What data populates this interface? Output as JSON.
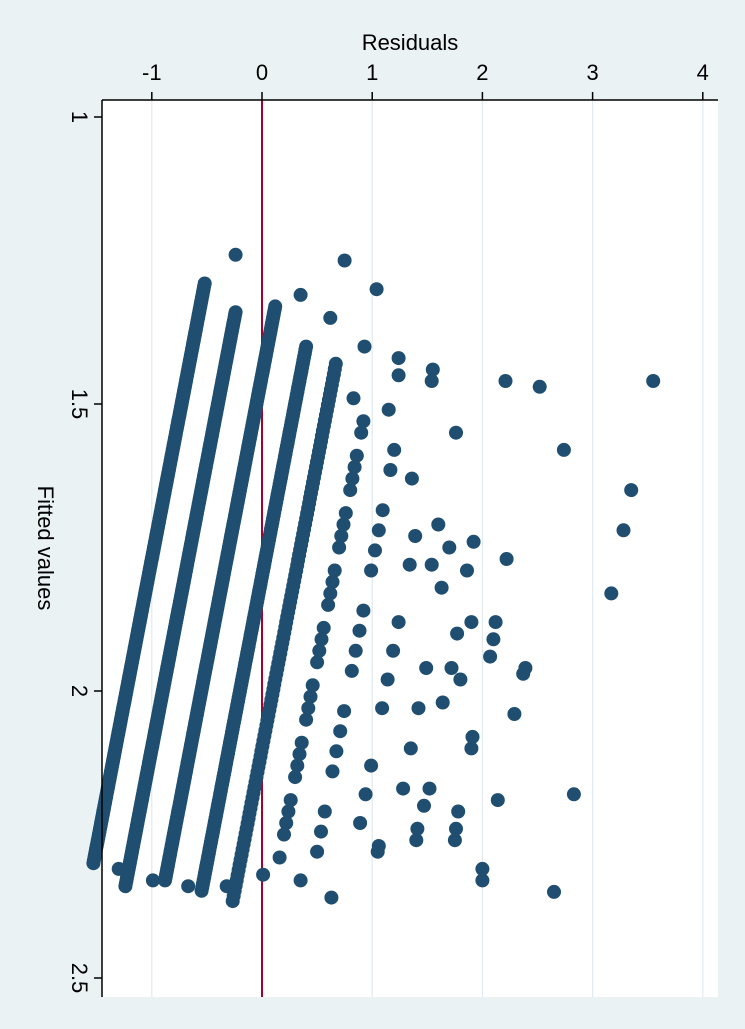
{
  "chart_data": {
    "type": "scatter",
    "orientation": "rotated-90",
    "xlabel": "Residuals",
    "ylabel": "Fitted values",
    "xlim": [
      -1.45,
      4.15
    ],
    "ylim": [
      1.0,
      2.5
    ],
    "x_ticks": [
      "-1",
      "0",
      "1",
      "2",
      "3",
      "4"
    ],
    "y_ticks": [
      "1",
      "1.5",
      "2",
      "2.5"
    ],
    "reference_line": {
      "x": 0,
      "color": "#a8002a"
    },
    "grid": true,
    "legend": "none",
    "point_color": "#1f4e70",
    "band_offsets": [
      -0.68,
      -0.35,
      0.0,
      0.35,
      0.65,
      1.0,
      1.33,
      1.67,
      2.0,
      2.33
    ],
    "band_fitted_ranges": [
      [
        1.29,
        2.3
      ],
      [
        1.34,
        2.34
      ],
      [
        1.33,
        2.33
      ],
      [
        1.4,
        2.35
      ],
      [
        1.43,
        2.37
      ],
      [
        1.53,
        2.3
      ],
      [
        1.58,
        2.28
      ],
      [
        1.73,
        2.25
      ],
      [
        1.75,
        2.23
      ],
      [
        1.88,
        2.17
      ]
    ],
    "band_spacing": [
      0.005,
      0.005,
      0.005,
      0.006,
      0.009,
      0.02,
      0.035,
      0.05,
      0.07,
      0.1
    ],
    "points": [
      {
        "x": -0.24,
        "y": 1.24
      },
      {
        "x": 0.75,
        "y": 1.25
      },
      {
        "x": 1.04,
        "y": 1.3
      },
      {
        "x": 0.35,
        "y": 1.31
      },
      {
        "x": 0.62,
        "y": 1.35
      },
      {
        "x": 0.93,
        "y": 1.4
      },
      {
        "x": 1.24,
        "y": 1.42
      },
      {
        "x": 1.24,
        "y": 1.45
      },
      {
        "x": 1.55,
        "y": 1.44
      },
      {
        "x": 1.54,
        "y": 1.46
      },
      {
        "x": 2.21,
        "y": 1.46
      },
      {
        "x": 2.52,
        "y": 1.47
      },
      {
        "x": 3.55,
        "y": 1.46
      },
      {
        "x": 0.83,
        "y": 1.49
      },
      {
        "x": 1.15,
        "y": 1.51
      },
      {
        "x": 1.76,
        "y": 1.55
      },
      {
        "x": 2.74,
        "y": 1.58
      },
      {
        "x": 1.36,
        "y": 1.63
      },
      {
        "x": 3.35,
        "y": 1.65
      },
      {
        "x": 1.6,
        "y": 1.71
      },
      {
        "x": 3.28,
        "y": 1.72
      },
      {
        "x": 1.92,
        "y": 1.74
      },
      {
        "x": 2.22,
        "y": 1.77
      },
      {
        "x": 1.54,
        "y": 1.78
      },
      {
        "x": 1.86,
        "y": 1.79
      },
      {
        "x": 3.17,
        "y": 1.83
      },
      {
        "x": 2.12,
        "y": 1.88
      },
      {
        "x": 1.77,
        "y": 1.9
      },
      {
        "x": 2.1,
        "y": 1.91
      },
      {
        "x": 2.07,
        "y": 1.94
      },
      {
        "x": 1.72,
        "y": 1.96
      },
      {
        "x": 2.39,
        "y": 1.96
      },
      {
        "x": 2.37,
        "y": 1.97
      },
      {
        "x": 1.64,
        "y": 2.02
      },
      {
        "x": 2.29,
        "y": 2.04
      },
      {
        "x": 1.91,
        "y": 2.08
      },
      {
        "x": 1.9,
        "y": 2.1
      },
      {
        "x": 1.52,
        "y": 2.17
      },
      {
        "x": 2.83,
        "y": 2.18
      },
      {
        "x": 2.14,
        "y": 2.19
      },
      {
        "x": 1.47,
        "y": 2.2
      },
      {
        "x": 1.78,
        "y": 2.21
      },
      {
        "x": 1.76,
        "y": 2.24
      },
      {
        "x": 1.75,
        "y": 2.26
      },
      {
        "x": 1.41,
        "y": 2.24
      },
      {
        "x": 1.4,
        "y": 2.26
      },
      {
        "x": 2.0,
        "y": 2.31
      },
      {
        "x": 2.0,
        "y": 2.33
      },
      {
        "x": 2.65,
        "y": 2.35
      },
      {
        "x": 0.63,
        "y": 2.36
      },
      {
        "x": -1.3,
        "y": 2.31
      },
      {
        "x": -0.99,
        "y": 2.33
      },
      {
        "x": -0.67,
        "y": 2.34
      },
      {
        "x": 0.01,
        "y": 2.32
      },
      {
        "x": -0.32,
        "y": 2.34
      },
      {
        "x": 0.35,
        "y": 2.33
      },
      {
        "x": 1.05,
        "y": 2.28
      },
      {
        "x": 1.06,
        "y": 2.27
      }
    ]
  }
}
